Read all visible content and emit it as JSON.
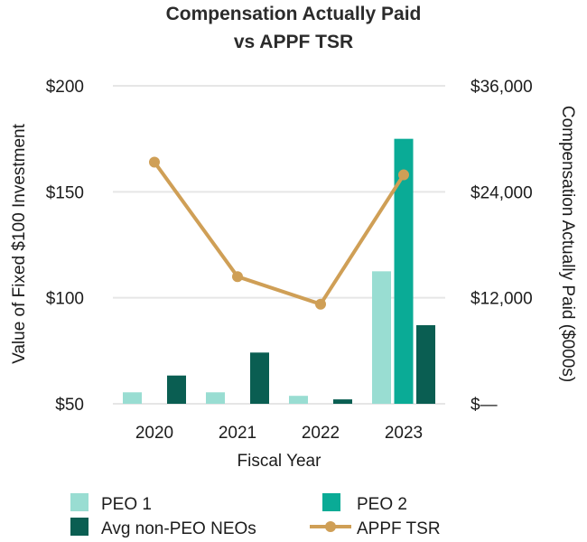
{
  "chart_data": {
    "type": "bar",
    "title_lines": [
      "Compensation Actually Paid",
      "vs APPF TSR"
    ],
    "xlabel": "Fiscal Year",
    "ylabel_left": "Value of Fixed $100 Investment",
    "ylabel_right": "Compensation Actually Paid ($000s)",
    "categories": [
      "2020",
      "2021",
      "2022",
      "2023"
    ],
    "left_axis": {
      "ylim": [
        50,
        200
      ],
      "ticks": [
        50,
        100,
        150,
        200
      ],
      "tick_labels": [
        "$50",
        "$100",
        "$150",
        "$200"
      ]
    },
    "right_axis": {
      "ylim": [
        0,
        36000
      ],
      "ticks": [
        0,
        12000,
        24000,
        36000
      ],
      "tick_labels": [
        "$—",
        "$12,000",
        "$24,000",
        "$36,000"
      ]
    },
    "grid": true,
    "legend_position": "bottom",
    "series": [
      {
        "name": "PEO 1",
        "kind": "bar",
        "axis": "right",
        "color": "#99ddd2",
        "values": [
          1300,
          1300,
          900,
          15000
        ]
      },
      {
        "name": "PEO 2",
        "kind": "bar",
        "axis": "right",
        "color": "#0aab96",
        "values": [
          null,
          null,
          null,
          30000
        ]
      },
      {
        "name": "Avg non-PEO NEOs",
        "kind": "bar",
        "axis": "right",
        "color": "#0a5e52",
        "values": [
          3200,
          5800,
          500,
          8900
        ]
      },
      {
        "name": "APPF TSR",
        "kind": "line",
        "axis": "left",
        "color": "#cf9f56",
        "values": [
          164,
          110,
          97,
          158
        ]
      }
    ]
  }
}
